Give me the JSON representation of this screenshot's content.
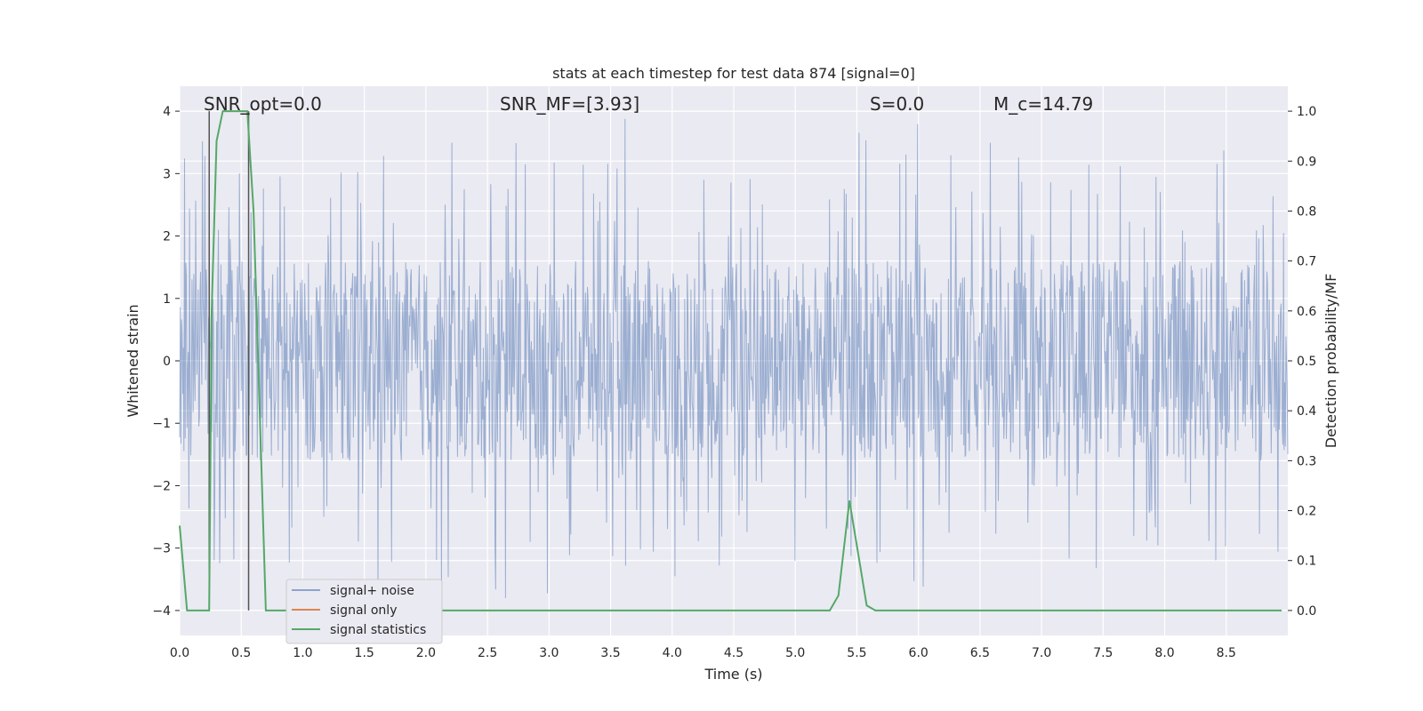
{
  "chart_data": {
    "type": "line",
    "title": "stats at each timestep for test data 874 [signal=0]",
    "xlabel": "Time (s)",
    "ylabel": "Whitened strain",
    "ylabel_right": "Detection probability/MF",
    "xlim": [
      0.0,
      9.0
    ],
    "ylim": [
      -4.4,
      4.4
    ],
    "ylim_right": [
      -0.05,
      1.05
    ],
    "xticks": [
      "0.0",
      "0.5",
      "1.0",
      "1.5",
      "2.0",
      "2.5",
      "3.0",
      "3.5",
      "4.0",
      "4.5",
      "5.0",
      "5.5",
      "6.0",
      "6.5",
      "7.0",
      "7.5",
      "8.0",
      "8.5"
    ],
    "yticks": [
      "4",
      "3",
      "2",
      "1",
      "0",
      "−1",
      "−2",
      "−3",
      "−4"
    ],
    "yticks_right": [
      "1.0",
      "0.9",
      "0.8",
      "0.7",
      "0.6",
      "0.5",
      "0.4",
      "0.3",
      "0.2",
      "0.1",
      "0.0"
    ],
    "grid": true,
    "legend_position": "lower-left",
    "series": [
      {
        "name": "signal+ noise",
        "color": "#4c72b0",
        "kind": "noise",
        "envelope": {
          "core_abs": 1.4,
          "peak_max": 4.0,
          "peak_min": -3.9
        }
      },
      {
        "name": "signal only",
        "color": "#dd8452",
        "values_note": "flat zero"
      },
      {
        "name": "signal statistics",
        "color": "#55a868",
        "axis": "right",
        "x": [
          0.0,
          0.06,
          0.12,
          0.2,
          0.24,
          0.26,
          0.3,
          0.35,
          0.4,
          0.5,
          0.55,
          0.6,
          0.65,
          0.7,
          0.75,
          5.2,
          5.28,
          5.35,
          5.44,
          5.52,
          5.58,
          5.65,
          8.95
        ],
        "values": [
          0.17,
          0.0,
          0.0,
          0.0,
          0.0,
          0.6,
          0.94,
          1.0,
          1.0,
          1.0,
          1.0,
          0.8,
          0.4,
          0.0,
          0.0,
          0.0,
          0.0,
          0.03,
          0.22,
          0.1,
          0.01,
          0.0,
          0.0
        ]
      }
    ],
    "vlines": [
      {
        "x": 0.24,
        "color": "#555555"
      },
      {
        "x": 0.56,
        "color": "#555555"
      }
    ],
    "annotations": [
      {
        "id": "snr-opt",
        "text": "SNR_opt=0.0",
        "x": 0.2
      },
      {
        "id": "snr-mf",
        "text": "SNR_MF=[3.93]",
        "x": 2.6
      },
      {
        "id": "s-val",
        "text": "S=0.0",
        "x": 5.6
      },
      {
        "id": "mc-val",
        "text": "M_c=14.79",
        "x": 6.6
      }
    ],
    "legend": [
      {
        "label": "signal+ noise",
        "color": "#4c72b0"
      },
      {
        "label": "signal only",
        "color": "#dd8452"
      },
      {
        "label": "signal statistics",
        "color": "#55a868"
      }
    ]
  }
}
